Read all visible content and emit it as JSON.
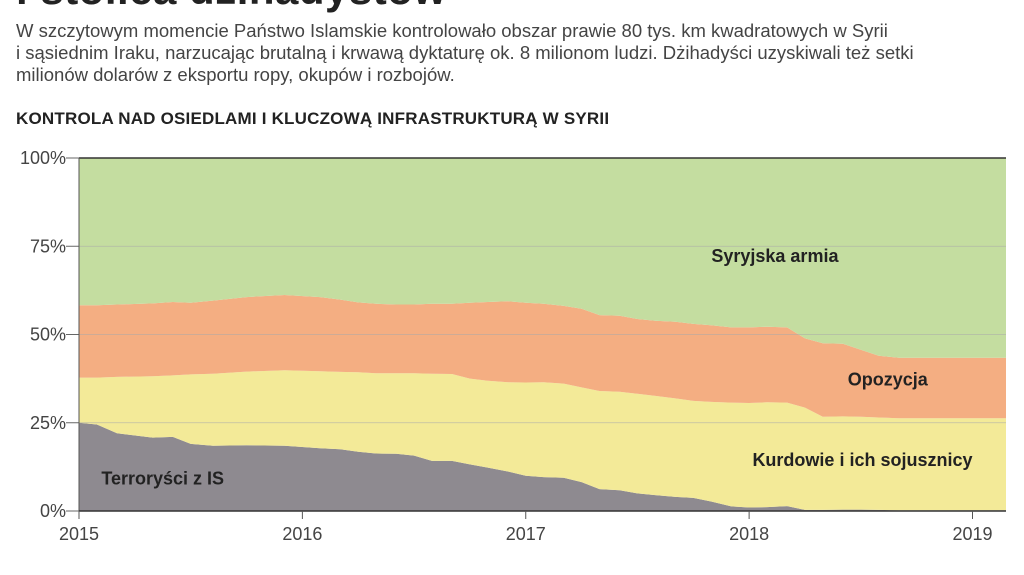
{
  "header": {
    "headline_fragment": "i stolica dżihadystów",
    "intro_lines": [
      "W szczytowym momencie Państwo Islamskie kontrolowało obszar prawie 80 tys. km kwadratowych w Syrii",
      "i sąsiednim Iraku, narzucając brutalną i krwawą dyktaturę ok. 8 milionom ludzi. Dżihadyści uzyskiwali też setki",
      "milionów dolarów z eksportu ropy, okupów i rozbojów."
    ],
    "subtitle": "KONTROLA NAD OSIEDLAMI I KLUCZOWĄ INFRASTRUKTURĄ W SYRII"
  },
  "chart_data": {
    "type": "area",
    "stacked": true,
    "title": "KONTROLA NAD OSIEDLAMI I KLUCZOWĄ INFRASTRUKTURĄ W SYRII",
    "xlabel": "",
    "ylabel": "",
    "xlim": [
      2015.0,
      2019.15
    ],
    "ylim": [
      0,
      100
    ],
    "y_unit": "%",
    "grid": true,
    "x_ticks": [
      "2015",
      "2016",
      "2017",
      "2018",
      "2019"
    ],
    "y_ticks": [
      "0%",
      "25%",
      "50%",
      "75%",
      "100%"
    ],
    "x": [
      2015.0,
      2015.08,
      2015.17,
      2015.33,
      2015.42,
      2015.5,
      2015.6,
      2015.75,
      2015.92,
      2016.08,
      2016.17,
      2016.25,
      2016.33,
      2016.42,
      2016.5,
      2016.58,
      2016.67,
      2016.75,
      2016.83,
      2016.92,
      2017.0,
      2017.08,
      2017.17,
      2017.25,
      2017.33,
      2017.42,
      2017.5,
      2017.58,
      2017.67,
      2017.75,
      2017.83,
      2017.92,
      2018.0,
      2018.08,
      2018.17,
      2018.25,
      2018.33,
      2018.42,
      2018.5,
      2018.58,
      2018.67,
      2018.75,
      2018.83,
      2018.92,
      2019.0,
      2019.15
    ],
    "series": [
      {
        "name": "Terroryści z IS",
        "color": "#8e8a90",
        "values": [
          25.0,
          24.5,
          22.0,
          20.8,
          21.0,
          19.0,
          18.5,
          18.6,
          18.5,
          17.8,
          17.5,
          16.8,
          16.3,
          16.2,
          15.7,
          14.2,
          14.2,
          13.2,
          12.3,
          11.2,
          10.0,
          9.6,
          9.4,
          8.2,
          6.2,
          5.9,
          5.0,
          4.5,
          4.0,
          3.7,
          2.7,
          1.3,
          1.0,
          1.1,
          1.4,
          0.3,
          0.3,
          0.4,
          0.4,
          0.3,
          0.2,
          0.2,
          0.2,
          0.2,
          0.2,
          0.2
        ]
      },
      {
        "name": "Kurdowie i ich sojusznicy",
        "color": "#f3ea98",
        "values": [
          12.8,
          13.3,
          16.0,
          17.4,
          17.4,
          19.7,
          20.4,
          20.9,
          21.4,
          21.8,
          21.9,
          22.5,
          22.7,
          22.8,
          23.3,
          24.7,
          24.6,
          24.3,
          24.6,
          25.3,
          26.4,
          26.9,
          26.7,
          26.8,
          27.8,
          27.9,
          28.2,
          28.1,
          27.9,
          27.5,
          28.2,
          29.4,
          29.6,
          29.7,
          29.3,
          29.0,
          26.4,
          26.4,
          26.3,
          26.2,
          26.1,
          26.1,
          26.1,
          26.1,
          26.1,
          26.1
        ]
      },
      {
        "name": "Opozycja",
        "color": "#f4ae82",
        "values": [
          20.5,
          20.5,
          20.5,
          20.6,
          20.8,
          20.3,
          20.7,
          21.1,
          21.3,
          21.0,
          20.5,
          19.8,
          19.7,
          19.5,
          19.5,
          19.8,
          19.9,
          21.5,
          22.3,
          22.9,
          22.6,
          22.2,
          22.0,
          22.3,
          21.5,
          21.5,
          21.2,
          21.3,
          21.7,
          21.8,
          21.7,
          21.3,
          21.4,
          21.4,
          21.3,
          19.6,
          20.8,
          20.6,
          19.0,
          17.5,
          17.1,
          17.1,
          17.1,
          17.1,
          17.1,
          17.1
        ]
      },
      {
        "name": "Syryjska armia",
        "color": "#c4dda0",
        "values": [
          41.7,
          41.7,
          41.5,
          41.2,
          40.8,
          41.0,
          40.4,
          39.4,
          38.8,
          39.4,
          40.1,
          40.9,
          41.3,
          41.5,
          41.5,
          41.3,
          41.3,
          41.0,
          40.8,
          40.6,
          41.0,
          41.3,
          41.9,
          42.7,
          44.5,
          44.7,
          45.6,
          46.1,
          46.4,
          47.0,
          47.4,
          48.0,
          48.0,
          47.8,
          48.0,
          51.1,
          52.5,
          52.6,
          54.3,
          56.0,
          56.6,
          56.6,
          56.6,
          56.6,
          56.6,
          56.6
        ]
      }
    ],
    "annotations": [
      "Syryjska armia",
      "Opozycja",
      "Kurdowie i ich sojusznicy",
      "Terroryści z IS"
    ]
  }
}
